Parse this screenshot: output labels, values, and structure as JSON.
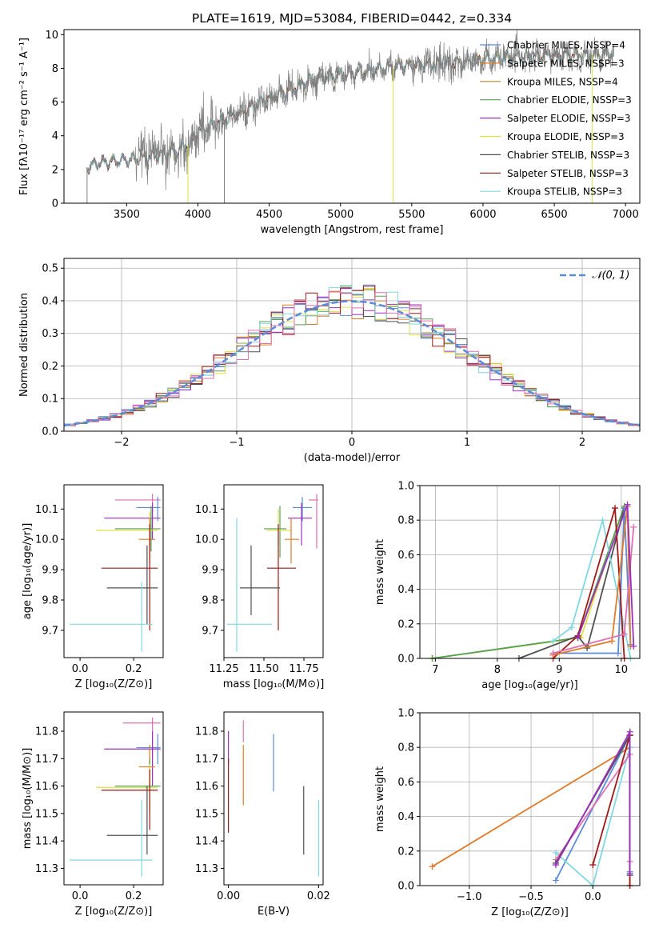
{
  "colors": {
    "chabrier_miles": "#5b8bd9",
    "salpeter_miles": "#e07b2a",
    "kroupa_miles": "#c0822a",
    "chabrier_elodie": "#55a055",
    "salpeter_elodie": "#9b30c0",
    "kroupa_elodie": "#e0e040",
    "chabrier_stelib": "#505050",
    "salpeter_stelib": "#a01818",
    "kroupa_stelib": "#80d8e0",
    "pink": "#e070b0",
    "data": "#808080"
  },
  "chart_data": [
    {
      "type": "line",
      "title": "PLATE=1619, MJD=53084, FIBERID=0442, z=0.334",
      "xlabel": "wavelength [Angstrom, rest frame]",
      "ylabel": "Flux [fλ10⁻¹⁷ erg cm⁻² s⁻¹ A⁻¹]",
      "xlim": [
        3060,
        7100
      ],
      "ylim": [
        0,
        10.3
      ],
      "xticks": [
        "3500",
        "4000",
        "4500",
        "5000",
        "5500",
        "6000",
        "6500",
        "7000"
      ],
      "yticks": [
        "0",
        "2",
        "4",
        "6",
        "8",
        "10"
      ],
      "legend_position": "right",
      "legend": [
        "Chabrier MILES, N_SSP=4",
        "Salpeter MILES, N_SSP=3",
        "Kroupa MILES, N_SSP=4",
        "Chabrier ELODIE, N_SSP=3",
        "Salpeter ELODIE, N_SSP=3",
        "Kroupa ELODIE, N_SSP=3",
        "Chabrier STELIB, N_SSP=3",
        "Salpeter STELIB, N_SSP=3",
        "Kroupa STELIB, N_SSP=3"
      ],
      "legend_colors": [
        "chabrier_miles",
        "salpeter_miles",
        "kroupa_miles",
        "chabrier_elodie",
        "salpeter_elodie",
        "kroupa_elodie",
        "chabrier_stelib",
        "salpeter_stelib",
        "kroupa_stelib"
      ],
      "continuum_x": [
        3220,
        3300,
        3500,
        3700,
        3850,
        3950,
        4000,
        4200,
        4500,
        4800,
        5000,
        5200,
        5500,
        5800,
        6000,
        6300,
        6600,
        6800,
        6920
      ],
      "continuum_y": [
        2.1,
        2.4,
        2.55,
        2.8,
        3.1,
        3.5,
        4.3,
        5.0,
        6.2,
        7.3,
        7.6,
        7.9,
        8.2,
        8.3,
        8.55,
        8.7,
        8.8,
        8.8,
        8.9
      ]
    },
    {
      "type": "area",
      "xlabel": "(data-model)/error",
      "ylabel": "Normed distribution",
      "xlim": [
        -2.5,
        2.5
      ],
      "ylim": [
        0,
        0.53
      ],
      "xticks": [
        "−2",
        "−1",
        "0",
        "1",
        "2"
      ],
      "yticks": [
        "0.0",
        "0.1",
        "0.2",
        "0.3",
        "0.4",
        "0.5"
      ],
      "legend": [
        "𝒩(0, 1)"
      ],
      "grid": true,
      "bins": 50
    },
    {
      "type": "scatter",
      "name": "age_vs_Z",
      "xlabel": "Z [log₁₀(Z/Z⊙)]",
      "ylabel": "age  [log₁₀(age/yr)]",
      "xlim": [
        -0.06,
        0.31
      ],
      "ylim": [
        9.61,
        10.18
      ],
      "xticks": [
        "0.0",
        "0.2"
      ],
      "yticks": [
        "9.7",
        "9.8",
        "9.9",
        "10.0",
        "10.1"
      ],
      "points": [
        {
          "color": "pink",
          "x": 0.27,
          "y": 10.13,
          "xe": [
            0.13,
            0.3
          ],
          "ye": [
            10.09,
            10.15
          ]
        },
        {
          "color": "chabrier_miles",
          "x": 0.29,
          "y": 10.105,
          "xe": [
            0.21,
            0.3
          ],
          "ye": [
            10.06,
            10.14
          ]
        },
        {
          "color": "salpeter_elodie",
          "x": 0.27,
          "y": 10.07,
          "xe": [
            0.09,
            0.3
          ],
          "ye": [
            10.0,
            10.12
          ]
        },
        {
          "color": "chabrier_elodie",
          "x": 0.265,
          "y": 10.035,
          "xe": [
            0.13,
            0.3
          ],
          "ye": [
            9.96,
            10.11
          ]
        },
        {
          "color": "kroupa_elodie",
          "x": 0.26,
          "y": 10.03,
          "xe": [
            0.06,
            0.29
          ],
          "ye": [
            9.98,
            10.09
          ]
        },
        {
          "color": "salpeter_miles",
          "x": 0.26,
          "y": 10.0,
          "xe": [
            0.22,
            0.28
          ],
          "ye": [
            9.92,
            10.07
          ]
        },
        {
          "color": "salpeter_stelib",
          "x": 0.26,
          "y": 9.905,
          "xe": [
            0.08,
            0.29
          ],
          "ye": [
            9.7,
            10.05
          ]
        },
        {
          "color": "chabrier_stelib",
          "x": 0.25,
          "y": 9.84,
          "xe": [
            0.1,
            0.29
          ],
          "ye": [
            9.72,
            9.98
          ]
        },
        {
          "color": "kroupa_stelib",
          "x": 0.23,
          "y": 9.72,
          "xe": [
            -0.04,
            0.27
          ],
          "ye": [
            9.63,
            9.86
          ]
        }
      ]
    },
    {
      "type": "scatter",
      "name": "age_vs_mass",
      "xlabel": "mass [log₁₀(M/M⊙)]",
      "xlim": [
        11.25,
        11.87
      ],
      "ylim": [
        9.61,
        10.18
      ],
      "xticks": [
        "11.25",
        "11.50",
        "11.75"
      ],
      "yticks": [
        "9.7",
        "9.8",
        "9.9",
        "10.0",
        "10.1"
      ],
      "points": [
        {
          "color": "pink",
          "x": 11.83,
          "y": 10.13,
          "xe": [
            11.78,
            11.84
          ],
          "ye": [
            9.97,
            10.15
          ]
        },
        {
          "color": "chabrier_miles",
          "x": 11.74,
          "y": 10.105,
          "xe": [
            11.68,
            11.8
          ],
          "ye": [
            10.06,
            10.14
          ]
        },
        {
          "color": "salpeter_elodie",
          "x": 11.735,
          "y": 10.07,
          "xe": [
            11.65,
            11.8
          ],
          "ye": [
            9.98,
            10.12
          ]
        },
        {
          "color": "chabrier_elodie",
          "x": 11.6,
          "y": 10.035,
          "xe": [
            11.5,
            11.64
          ],
          "ye": [
            9.94,
            10.11
          ]
        },
        {
          "color": "kroupa_elodie",
          "x": 11.59,
          "y": 10.03,
          "xe": [
            11.52,
            11.67
          ],
          "ye": [
            9.98,
            10.1
          ]
        },
        {
          "color": "salpeter_miles",
          "x": 11.67,
          "y": 10.0,
          "xe": [
            11.63,
            11.72
          ],
          "ye": [
            9.92,
            10.07
          ]
        },
        {
          "color": "salpeter_stelib",
          "x": 11.59,
          "y": 9.905,
          "xe": [
            11.52,
            11.7
          ],
          "ye": [
            9.7,
            10.05
          ]
        },
        {
          "color": "chabrier_stelib",
          "x": 11.42,
          "y": 9.84,
          "xe": [
            11.35,
            11.6
          ],
          "ye": [
            9.75,
            9.98
          ]
        },
        {
          "color": "kroupa_stelib",
          "x": 11.33,
          "y": 9.72,
          "xe": [
            11.27,
            11.55
          ],
          "ye": [
            9.63,
            10.07
          ]
        }
      ]
    },
    {
      "type": "line",
      "name": "mass_weight_vs_age",
      "xlabel": "age  [log₁₀(age/yr)]",
      "ylabel": "mass weight",
      "xlim": [
        6.75,
        10.3
      ],
      "ylim": [
        0,
        1.0
      ],
      "xticks": [
        "7",
        "8",
        "9",
        "10"
      ],
      "yticks": [
        "0.0",
        "0.2",
        "0.4",
        "0.6",
        "0.8",
        "1.0"
      ],
      "grid": true,
      "series": [
        {
          "color": "kroupa_elodie",
          "x": [
            6.95,
            9.35,
            10.05
          ],
          "y": [
            0.0,
            0.12,
            0.88
          ]
        },
        {
          "color": "chabrier_elodie",
          "x": [
            6.95,
            9.3,
            10.05
          ],
          "y": [
            0.0,
            0.12,
            0.88
          ]
        },
        {
          "color": "chabrier_stelib",
          "x": [
            8.35,
            9.3,
            9.45,
            10.05
          ],
          "y": [
            0.0,
            0.13,
            0.06,
            0.87
          ]
        },
        {
          "color": "kroupa_stelib",
          "x": [
            8.9,
            9.2,
            9.7,
            10.15
          ],
          "y": [
            0.1,
            0.18,
            0.8,
            0.0
          ]
        },
        {
          "color": "chabrier_miles",
          "x": [
            8.9,
            9.95,
            10.05,
            10.15
          ],
          "y": [
            0.03,
            0.03,
            0.87,
            0.08
          ]
        },
        {
          "color": "salpeter_stelib",
          "x": [
            8.9,
            9.3,
            9.9,
            10.05
          ],
          "y": [
            0.0,
            0.13,
            0.87,
            0.0
          ]
        },
        {
          "color": "salpeter_miles",
          "x": [
            8.9,
            9.85,
            10.1,
            10.15
          ],
          "y": [
            0.02,
            0.1,
            0.88,
            0.07
          ]
        },
        {
          "color": "pink",
          "x": [
            8.9,
            10.05,
            10.2
          ],
          "y": [
            0.03,
            0.14,
            0.76
          ]
        },
        {
          "color": "salpeter_elodie",
          "x": [
            9.3,
            10.1,
            10.2
          ],
          "y": [
            0.12,
            0.89,
            0.07
          ]
        }
      ]
    },
    {
      "type": "scatter",
      "name": "mass_vs_Z",
      "xlabel": "Z [log₁₀(Z/Z⊙)]",
      "ylabel": "mass [log₁₀(M/M⊙)]",
      "xlim": [
        -0.06,
        0.31
      ],
      "ylim": [
        11.24,
        11.87
      ],
      "xticks": [
        "0.0",
        "0.2"
      ],
      "yticks": [
        "11.3",
        "11.4",
        "11.5",
        "11.6",
        "11.7",
        "11.8"
      ],
      "points": [
        {
          "color": "pink",
          "x": 0.27,
          "y": 11.83,
          "xe": [
            0.16,
            0.3
          ],
          "ye": [
            11.7,
            11.85
          ]
        },
        {
          "color": "chabrier_miles",
          "x": 0.29,
          "y": 11.74,
          "xe": [
            0.21,
            0.3
          ],
          "ye": [
            11.68,
            11.79
          ]
        },
        {
          "color": "salpeter_elodie",
          "x": 0.27,
          "y": 11.735,
          "xe": [
            0.09,
            0.3
          ],
          "ye": [
            11.6,
            11.8
          ]
        },
        {
          "color": "salpeter_miles",
          "x": 0.26,
          "y": 11.67,
          "xe": [
            0.22,
            0.28
          ],
          "ye": [
            11.6,
            11.75
          ]
        },
        {
          "color": "chabrier_elodie",
          "x": 0.26,
          "y": 11.6,
          "xe": [
            0.13,
            0.3
          ],
          "ye": [
            11.5,
            11.7
          ]
        },
        {
          "color": "kroupa_elodie",
          "x": 0.26,
          "y": 11.595,
          "xe": [
            0.06,
            0.29
          ],
          "ye": [
            11.5,
            11.68
          ]
        },
        {
          "color": "salpeter_stelib",
          "x": 0.26,
          "y": 11.585,
          "xe": [
            0.08,
            0.29
          ],
          "ye": [
            11.44,
            11.66
          ]
        },
        {
          "color": "chabrier_stelib",
          "x": 0.25,
          "y": 11.42,
          "xe": [
            0.1,
            0.29
          ],
          "ye": [
            11.35,
            11.6
          ]
        },
        {
          "color": "kroupa_stelib",
          "x": 0.23,
          "y": 11.33,
          "xe": [
            -0.04,
            0.27
          ],
          "ye": [
            11.27,
            11.55
          ]
        }
      ]
    },
    {
      "type": "scatter",
      "name": "mass_vs_EBV",
      "xlabel": "E(B-V)",
      "xlim": [
        -0.001,
        0.021
      ],
      "ylim": [
        11.24,
        11.87
      ],
      "xticks": [
        "0.00",
        "0.02"
      ],
      "yticks": [
        "11.3",
        "11.4",
        "11.5",
        "11.6",
        "11.7",
        "11.8"
      ],
      "points": [
        {
          "color": "salpeter_elodie",
          "x": 0.0,
          "y": 11.74,
          "ye": [
            11.68,
            11.8
          ]
        },
        {
          "color": "salpeter_stelib",
          "x": 0.0,
          "y": 11.58,
          "ye": [
            11.43,
            11.7
          ]
        },
        {
          "color": "pink",
          "x": 0.0033,
          "y": 11.83,
          "ye": [
            11.76,
            11.84
          ]
        },
        {
          "color": "salpeter_miles",
          "x": 0.0033,
          "y": 11.67,
          "ye": [
            11.53,
            11.75
          ]
        },
        {
          "color": "chabrier_miles",
          "x": 0.01,
          "y": 11.74,
          "ye": [
            11.58,
            11.79
          ]
        },
        {
          "color": "chabrier_stelib",
          "x": 0.0167,
          "y": 11.42,
          "ye": [
            11.35,
            11.6
          ]
        },
        {
          "color": "kroupa_stelib",
          "x": 0.02,
          "y": 11.33,
          "ye": [
            11.27,
            11.55
          ]
        }
      ]
    },
    {
      "type": "line",
      "name": "mass_weight_vs_Z",
      "xlabel": "Z [log₁₀(Z/Z⊙)]",
      "ylabel": "mass weight",
      "xlim": [
        -1.4,
        0.38
      ],
      "ylim": [
        0,
        1.0
      ],
      "xticks": [
        "−1.0",
        "−0.5",
        "0.0"
      ],
      "yticks": [
        "0.0",
        "0.2",
        "0.4",
        "0.6",
        "0.8",
        "1.0"
      ],
      "grid": true,
      "series": [
        {
          "color": "salpeter_miles",
          "x": [
            -1.3,
            0.3,
            0.3
          ],
          "y": [
            0.11,
            0.8,
            0.0
          ]
        },
        {
          "color": "chabrier_miles",
          "x": [
            -0.3,
            0.3,
            0.3
          ],
          "y": [
            0.03,
            0.87,
            0.08
          ]
        },
        {
          "color": "kroupa_stelib",
          "x": [
            -0.3,
            0.0,
            0.3
          ],
          "y": [
            0.19,
            0.0,
            0.8
          ]
        },
        {
          "color": "pink",
          "x": [
            -0.3,
            0.3,
            0.3
          ],
          "y": [
            0.15,
            0.76,
            0.14
          ]
        },
        {
          "color": "chabrier_stelib",
          "x": [
            -0.3,
            0.3,
            0.3
          ],
          "y": [
            0.13,
            0.87,
            0.06
          ]
        },
        {
          "color": "salpeter_stelib",
          "x": [
            0.0,
            0.3,
            0.3
          ],
          "y": [
            0.12,
            0.87,
            0.0
          ]
        },
        {
          "color": "salpeter_elodie",
          "x": [
            -0.3,
            0.3,
            0.3
          ],
          "y": [
            0.12,
            0.89,
            0.07
          ]
        }
      ]
    }
  ]
}
